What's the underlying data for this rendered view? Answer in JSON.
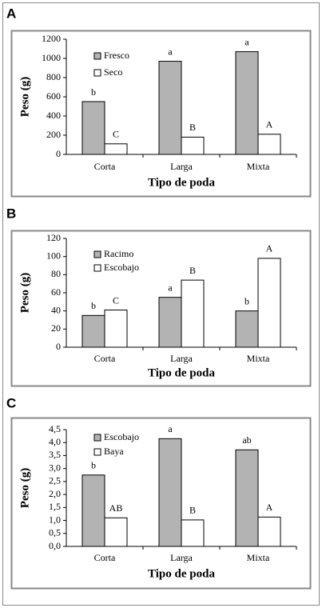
{
  "chart_data": [
    {
      "type": "bar",
      "panel": "A",
      "ylabel": "Peso (g)",
      "xlabel": "Tipo de poda",
      "categories": [
        "Corta",
        "Larga",
        "Mixta"
      ],
      "series": [
        {
          "name": "Fresco",
          "color": "#b3b3b3",
          "values": [
            550,
            970,
            1070
          ],
          "annotations": [
            "b",
            "a",
            "a"
          ]
        },
        {
          "name": "Seco",
          "color": "#ffffff",
          "values": [
            110,
            180,
            210
          ],
          "annotations": [
            "C",
            "B",
            "A"
          ]
        }
      ],
      "ylim": [
        0,
        1200
      ],
      "yticks": [
        0,
        200,
        400,
        600,
        800,
        1000,
        1200
      ],
      "grid": false,
      "legend": "upper left"
    },
    {
      "type": "bar",
      "panel": "B",
      "ylabel": "Peso (g)",
      "xlabel": "Tipo de poda",
      "categories": [
        "Corta",
        "Larga",
        "Mixta"
      ],
      "series": [
        {
          "name": "Racimo",
          "color": "#b3b3b3",
          "values": [
            35,
            55,
            40
          ],
          "annotations": [
            "b",
            "a",
            "b"
          ]
        },
        {
          "name": "Escobajo",
          "color": "#ffffff",
          "values": [
            41,
            74,
            98
          ],
          "annotations": [
            "C",
            "B",
            "A"
          ]
        }
      ],
      "ylim": [
        0,
        120
      ],
      "yticks": [
        0,
        20,
        40,
        60,
        80,
        100,
        120
      ],
      "grid": false,
      "legend": "upper left"
    },
    {
      "type": "bar",
      "panel": "C",
      "ylabel": "Peso (g)",
      "xlabel": "Tipo de poda",
      "categories": [
        "Corta",
        "Larga",
        "Mixta"
      ],
      "series": [
        {
          "name": "Escobajo",
          "color": "#b3b3b3",
          "values": [
            2.75,
            4.15,
            3.72
          ],
          "annotations": [
            "b",
            "a",
            "ab"
          ]
        },
        {
          "name": "Baya",
          "color": "#ffffff",
          "values": [
            1.1,
            1.02,
            1.13
          ],
          "annotations": [
            "AB",
            "B",
            "A"
          ]
        }
      ],
      "ylim": [
        0,
        4.5
      ],
      "yticks": [
        {
          "value": 0,
          "label": "0,0"
        },
        {
          "value": 0.5,
          "label": "0,5"
        },
        {
          "value": 1,
          "label": "1,0"
        },
        {
          "value": 1.5,
          "label": "1,5"
        },
        {
          "value": 2,
          "label": "2,0"
        },
        {
          "value": 2.5,
          "label": "2,5"
        },
        {
          "value": 3,
          "label": "3,0"
        },
        {
          "value": 3.5,
          "label": "3,5"
        },
        {
          "value": 4,
          "label": "4,0"
        },
        {
          "value": 4.5,
          "label": "4,5"
        }
      ],
      "grid": false,
      "legend": "upper left"
    }
  ]
}
